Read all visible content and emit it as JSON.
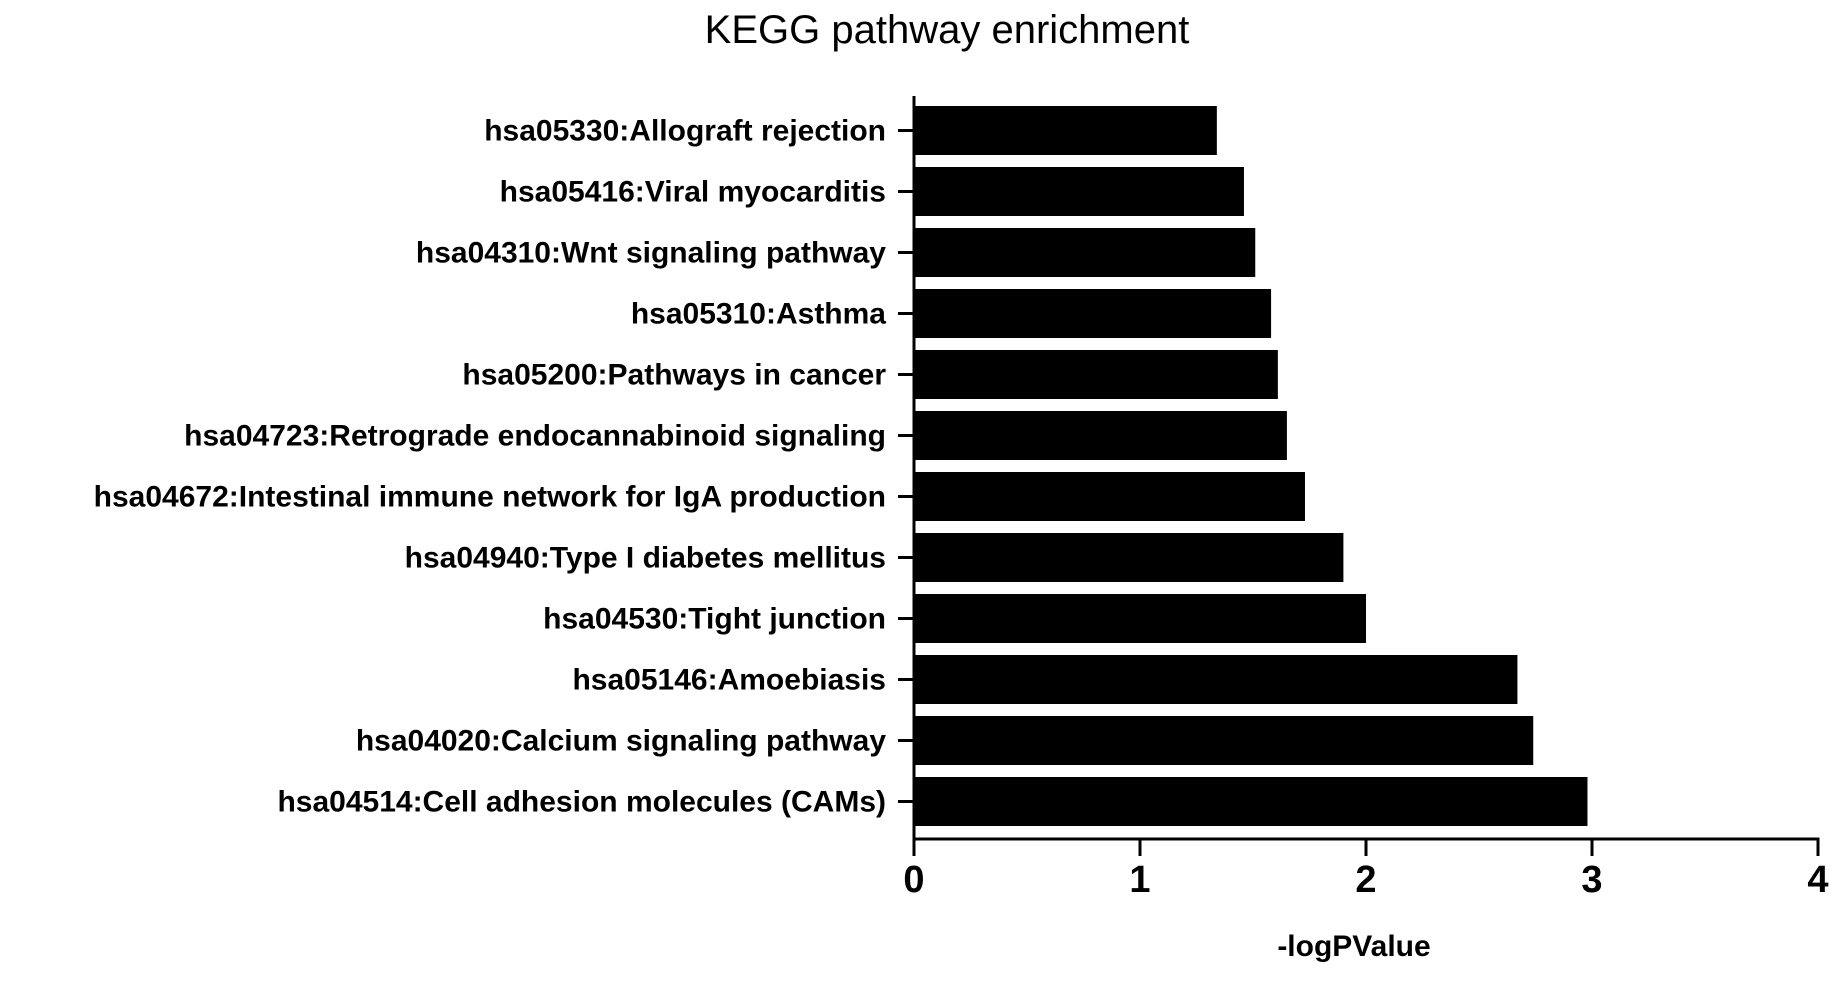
{
  "chart_data": {
    "type": "bar",
    "orientation": "horizontal",
    "title": "KEGG pathway enrichment",
    "xlabel": "-logPValue",
    "ylabel": "",
    "xlim": [
      0,
      4
    ],
    "x_ticks": [
      0,
      1,
      2,
      3,
      4
    ],
    "x_tick_labels": [
      "0",
      "1",
      "2",
      "3",
      "4"
    ],
    "grid": false,
    "legend": "none",
    "bar_color": "#000000",
    "categories": [
      "hsa05330:Allograft rejection",
      "hsa05416:Viral myocarditis",
      "hsa04310:Wnt signaling pathway",
      "hsa05310:Asthma",
      "hsa05200:Pathways in cancer",
      "hsa04723:Retrograde endocannabinoid signaling",
      "hsa04672:Intestinal immune network for IgA production",
      "hsa04940:Type I diabetes mellitus",
      "hsa04530:Tight junction",
      "hsa05146:Amoebiasis",
      "hsa04020:Calcium signaling pathway",
      "hsa04514:Cell adhesion molecules (CAMs)"
    ],
    "values": [
      1.34,
      1.46,
      1.51,
      1.58,
      1.61,
      1.65,
      1.73,
      1.9,
      2.0,
      2.67,
      2.74,
      2.98
    ]
  }
}
